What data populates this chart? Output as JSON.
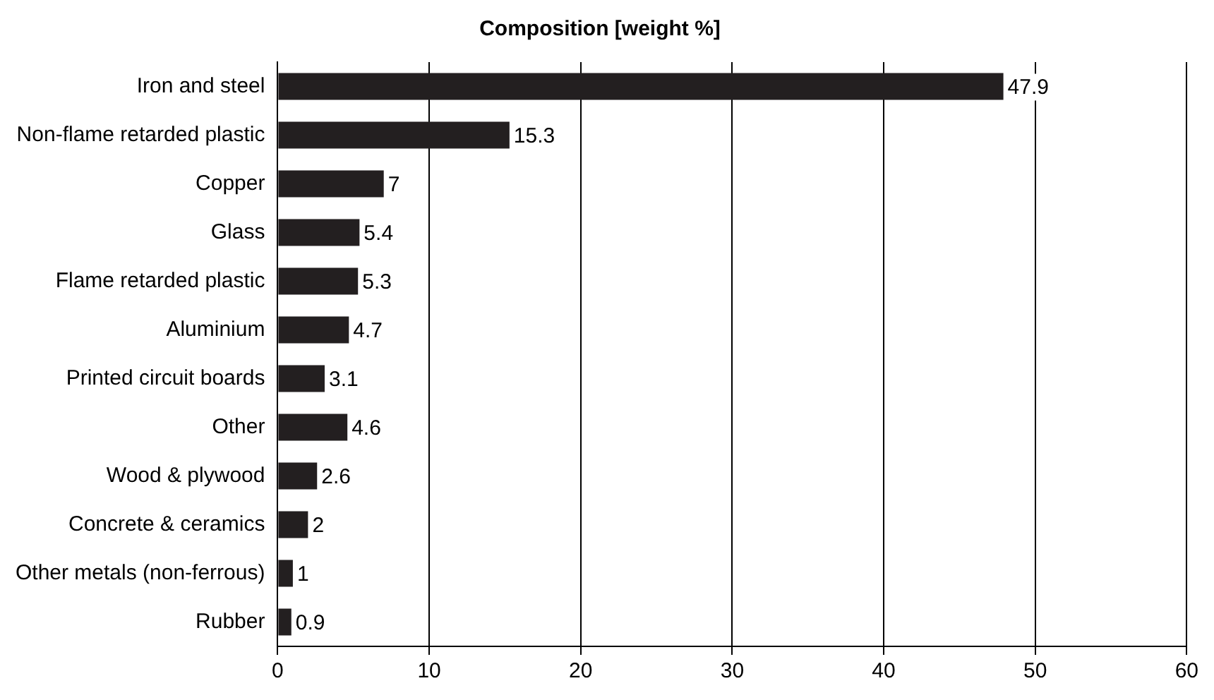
{
  "chart_data": {
    "type": "bar",
    "orientation": "horizontal",
    "title": "Composition [weight %]",
    "categories": [
      "Iron and steel",
      "Non-flame retarded plastic",
      "Copper",
      "Glass",
      "Flame retarded plastic",
      "Aluminium",
      "Printed circuit boards",
      "Other",
      "Wood & plywood",
      "Concrete & ceramics",
      "Other metals (non-ferrous)",
      "Rubber"
    ],
    "values": [
      47.9,
      15.3,
      7,
      5.4,
      5.3,
      4.7,
      3.1,
      4.6,
      2.6,
      2,
      1,
      0.9
    ],
    "color": "#231f20",
    "xlim": [
      0,
      60
    ],
    "xticks": [
      0,
      10,
      20,
      30,
      40,
      50,
      60
    ],
    "grid": "x",
    "data_labels": true,
    "legend": false
  }
}
